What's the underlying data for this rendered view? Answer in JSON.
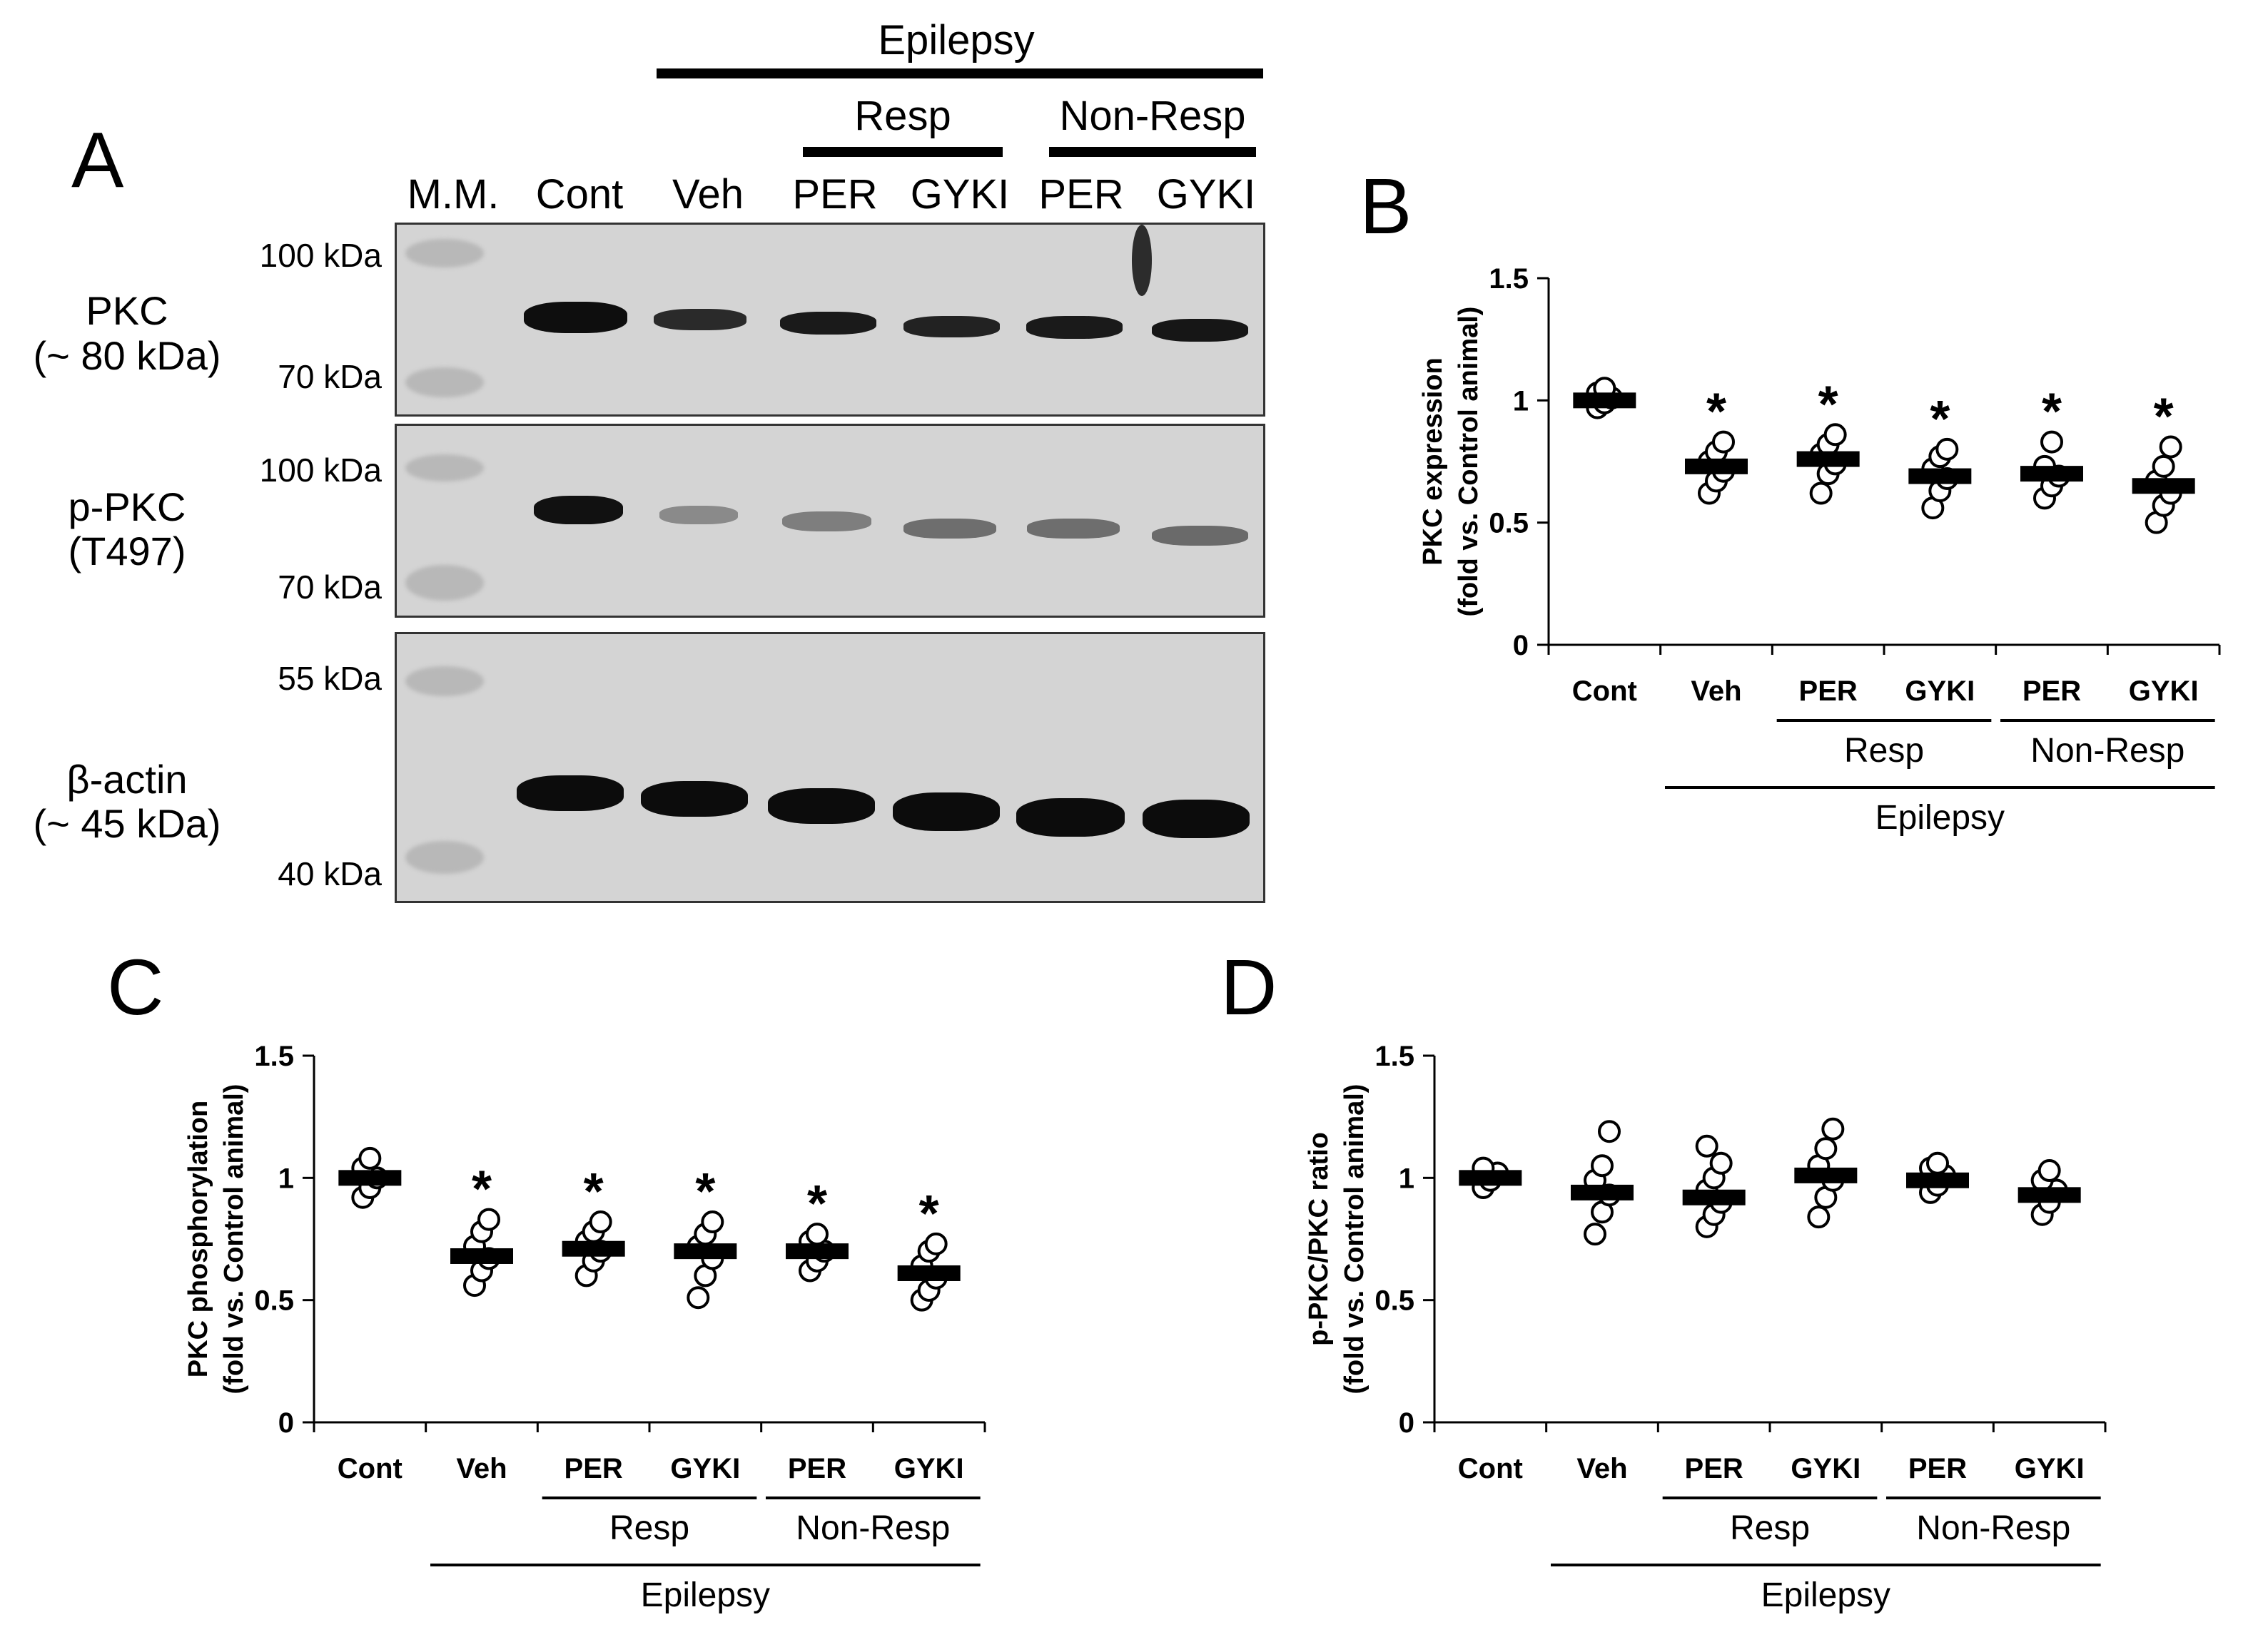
{
  "panel_letters": {
    "a": "A",
    "b": "B",
    "c": "C",
    "d": "D"
  },
  "blot": {
    "header_top": "Epilepsy",
    "header_resp": "Resp",
    "header_nonresp": "Non-Resp",
    "lanes": [
      "M.M.",
      "Cont",
      "Veh",
      "PER",
      "GYKI",
      "PER",
      "GYKI"
    ],
    "pkc": {
      "label1": "PKC",
      "label2": "(~ 80 kDa)",
      "kda_top": "100 kDa",
      "kda_bottom": "70 kDa"
    },
    "ppkc": {
      "label1": "p-PKC",
      "label2": "(T497)",
      "kda_top": "100 kDa",
      "kda_bottom": "70 kDa"
    },
    "actin": {
      "label1": "β-actin",
      "label2": "(~ 45 kDa)",
      "kda_top": "55 kDa",
      "kda_bottom": "40 kDa"
    }
  },
  "colors": {
    "ink": "#000000",
    "membrane": "#d4d4d4",
    "band": "#1a1a1a"
  },
  "chart_data": [
    {
      "id": "B",
      "type": "scatter",
      "ylabel1": "PKC expression",
      "ylabel2": "(fold vs. Control animal)",
      "ylim": [
        0,
        1.5
      ],
      "yticks": [
        "0",
        "0.5",
        "1",
        "1.5"
      ],
      "categories": [
        "Cont",
        "Veh",
        "PER",
        "GYKI",
        "PER",
        "GYKI"
      ],
      "group_resp": "Resp",
      "group_nonresp": "Non-Resp",
      "group_all": "Epilepsy",
      "means": [
        1.0,
        0.73,
        0.76,
        0.69,
        0.7,
        0.65
      ],
      "points": [
        [
          0.97,
          0.99,
          1.01,
          1.03,
          1.05
        ],
        [
          0.62,
          0.67,
          0.71,
          0.75,
          0.79,
          0.83
        ],
        [
          0.62,
          0.7,
          0.74,
          0.78,
          0.82,
          0.86
        ],
        [
          0.56,
          0.63,
          0.68,
          0.72,
          0.77,
          0.8
        ],
        [
          0.6,
          0.65,
          0.69,
          0.73,
          0.83
        ],
        [
          0.5,
          0.57,
          0.62,
          0.67,
          0.73,
          0.81
        ]
      ],
      "significant": [
        "",
        "*",
        "*",
        "*",
        "*",
        "*"
      ]
    },
    {
      "id": "C",
      "type": "scatter",
      "ylabel1": "PKC phosphorylation",
      "ylabel2": "(fold vs. Control animal)",
      "ylim": [
        0,
        1.5
      ],
      "yticks": [
        "0",
        "0.5",
        "1",
        "1.5"
      ],
      "categories": [
        "Cont",
        "Veh",
        "PER",
        "GYKI",
        "PER",
        "GYKI"
      ],
      "group_resp": "Resp",
      "group_nonresp": "Non-Resp",
      "group_all": "Epilepsy",
      "means": [
        1.0,
        0.68,
        0.71,
        0.7,
        0.7,
        0.61
      ],
      "points": [
        [
          0.92,
          0.96,
          1.0,
          1.04,
          1.08
        ],
        [
          0.56,
          0.62,
          0.67,
          0.72,
          0.78,
          0.83
        ],
        [
          0.6,
          0.66,
          0.7,
          0.74,
          0.78,
          0.82
        ],
        [
          0.51,
          0.6,
          0.67,
          0.72,
          0.77,
          0.82
        ],
        [
          0.62,
          0.66,
          0.7,
          0.74,
          0.77
        ],
        [
          0.5,
          0.54,
          0.59,
          0.64,
          0.7,
          0.73
        ]
      ],
      "significant": [
        "",
        "*",
        "*",
        "*",
        "*",
        "*"
      ]
    },
    {
      "id": "D",
      "type": "scatter",
      "ylabel1": "p-PKC/PKC ratio",
      "ylabel2": "(fold vs. Control animal)",
      "ylim": [
        0,
        1.5
      ],
      "yticks": [
        "0",
        "0.5",
        "1",
        "1.5"
      ],
      "categories": [
        "Cont",
        "Veh",
        "PER",
        "GYKI",
        "PER",
        "GYKI"
      ],
      "group_resp": "Resp",
      "group_nonresp": "Non-Resp",
      "group_all": "Epilepsy",
      "means": [
        1.0,
        0.94,
        0.92,
        1.01,
        0.99,
        0.93
      ],
      "points": [
        [
          0.96,
          0.99,
          1.02,
          1.04
        ],
        [
          0.77,
          0.86,
          0.93,
          0.99,
          1.05,
          1.19
        ],
        [
          0.8,
          0.85,
          0.9,
          0.95,
          1.0,
          1.06,
          1.13
        ],
        [
          0.84,
          0.92,
          0.99,
          1.05,
          1.12,
          1.2
        ],
        [
          0.94,
          0.97,
          1.01,
          1.04,
          1.06
        ],
        [
          0.85,
          0.9,
          0.95,
          0.99,
          1.03
        ]
      ],
      "significant": [
        "",
        "",
        "",
        "",
        "",
        ""
      ]
    }
  ]
}
